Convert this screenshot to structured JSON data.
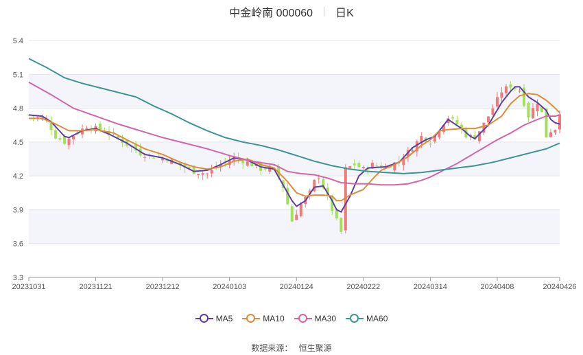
{
  "header": {
    "stock_title": "中金岭南 000060",
    "period": "日K"
  },
  "source": {
    "label": "数据来源：",
    "provider": "恒生聚源"
  },
  "chart_data": {
    "type": "candlestick",
    "ylim": [
      3.3,
      5.4
    ],
    "yticks": [
      3.3,
      3.6,
      3.9,
      4.2,
      4.5,
      4.8,
      5.1,
      5.4
    ],
    "x_ticks": [
      "20231031",
      "20231121",
      "20231212",
      "20240103",
      "20240124",
      "20240222",
      "20240314",
      "20240408",
      "20240426"
    ],
    "x_tick_index": [
      0,
      15,
      30,
      45,
      60,
      75,
      90,
      105,
      119
    ],
    "n_bars": 120,
    "colors": {
      "up": "#f07a7a",
      "down": "#a3e05a",
      "MA5": "#5e3ea0",
      "MA10": "#dc8c3a",
      "MA30": "#d464a8",
      "MA60": "#3e9494",
      "band": "#f4f5fa"
    },
    "close_anchors": [
      [
        0,
        4.74
      ],
      [
        4,
        4.7
      ],
      [
        6,
        4.55
      ],
      [
        8,
        4.5
      ],
      [
        10,
        4.56
      ],
      [
        13,
        4.64
      ],
      [
        16,
        4.61
      ],
      [
        19,
        4.56
      ],
      [
        22,
        4.48
      ],
      [
        25,
        4.4
      ],
      [
        28,
        4.37
      ],
      [
        31,
        4.35
      ],
      [
        34,
        4.29
      ],
      [
        37,
        4.24
      ],
      [
        40,
        4.22
      ],
      [
        43,
        4.3
      ],
      [
        46,
        4.36
      ],
      [
        49,
        4.32
      ],
      [
        52,
        4.26
      ],
      [
        55,
        4.28
      ],
      [
        57,
        4.1
      ],
      [
        59,
        3.8
      ],
      [
        61,
        3.95
      ],
      [
        63,
        4.05
      ],
      [
        64,
        4.15
      ],
      [
        65,
        4.2
      ],
      [
        67,
        4.0
      ],
      [
        69,
        3.8
      ],
      [
        70,
        3.7
      ],
      [
        71,
        4.26
      ],
      [
        73,
        4.3
      ],
      [
        75,
        4.26
      ],
      [
        77,
        4.3
      ],
      [
        80,
        4.28
      ],
      [
        83,
        4.33
      ],
      [
        86,
        4.45
      ],
      [
        88,
        4.55
      ],
      [
        90,
        4.5
      ],
      [
        92,
        4.62
      ],
      [
        94,
        4.72
      ],
      [
        96,
        4.66
      ],
      [
        98,
        4.56
      ],
      [
        100,
        4.54
      ],
      [
        102,
        4.66
      ],
      [
        104,
        4.8
      ],
      [
        106,
        4.95
      ],
      [
        108,
        5.0
      ],
      [
        110,
        4.96
      ],
      [
        112,
        4.73
      ],
      [
        114,
        4.86
      ],
      [
        115,
        4.76
      ],
      [
        116,
        4.55
      ],
      [
        117,
        4.6
      ],
      [
        118,
        4.62
      ],
      [
        119,
        4.77
      ]
    ],
    "series": [
      {
        "name": "MA5",
        "values": [
          [
            0,
            4.74
          ],
          [
            3,
            4.73
          ],
          [
            5,
            4.68
          ],
          [
            8,
            4.55
          ],
          [
            9,
            4.54
          ],
          [
            12,
            4.6
          ],
          [
            15,
            4.62
          ],
          [
            18,
            4.57
          ],
          [
            22,
            4.49
          ],
          [
            26,
            4.39
          ],
          [
            30,
            4.36
          ],
          [
            34,
            4.3
          ],
          [
            37,
            4.24
          ],
          [
            40,
            4.25
          ],
          [
            43,
            4.3
          ],
          [
            46,
            4.36
          ],
          [
            49,
            4.34
          ],
          [
            52,
            4.28
          ],
          [
            55,
            4.26
          ],
          [
            57,
            4.12
          ],
          [
            59,
            3.98
          ],
          [
            60,
            3.93
          ],
          [
            62,
            3.98
          ],
          [
            64,
            4.1
          ],
          [
            66,
            4.11
          ],
          [
            68,
            3.98
          ],
          [
            69,
            3.9
          ],
          [
            70,
            3.88
          ],
          [
            72,
            4.02
          ],
          [
            74,
            4.2
          ],
          [
            76,
            4.27
          ],
          [
            80,
            4.28
          ],
          [
            83,
            4.32
          ],
          [
            86,
            4.45
          ],
          [
            89,
            4.52
          ],
          [
            91,
            4.55
          ],
          [
            94,
            4.7
          ],
          [
            97,
            4.62
          ],
          [
            99,
            4.55
          ],
          [
            100,
            4.53
          ],
          [
            103,
            4.65
          ],
          [
            106,
            4.85
          ],
          [
            108,
            4.95
          ],
          [
            109,
            4.99
          ],
          [
            110,
            4.99
          ],
          [
            112,
            4.9
          ],
          [
            114,
            4.85
          ],
          [
            116,
            4.78
          ],
          [
            117,
            4.7
          ],
          [
            118,
            4.67
          ],
          [
            119,
            4.66
          ]
        ]
      },
      {
        "name": "MA10",
        "values": [
          [
            0,
            4.71
          ],
          [
            3,
            4.71
          ],
          [
            6,
            4.66
          ],
          [
            9,
            4.6
          ],
          [
            12,
            4.6
          ],
          [
            15,
            4.61
          ],
          [
            19,
            4.58
          ],
          [
            22,
            4.52
          ],
          [
            26,
            4.44
          ],
          [
            30,
            4.39
          ],
          [
            34,
            4.32
          ],
          [
            37,
            4.28
          ],
          [
            40,
            4.26
          ],
          [
            43,
            4.28
          ],
          [
            46,
            4.33
          ],
          [
            49,
            4.35
          ],
          [
            52,
            4.3
          ],
          [
            55,
            4.27
          ],
          [
            58,
            4.15
          ],
          [
            60,
            4.05
          ],
          [
            62,
            4.02
          ],
          [
            64,
            4.03
          ],
          [
            66,
            4.03
          ],
          [
            68,
            4.02
          ],
          [
            69,
            3.98
          ],
          [
            70,
            3.98
          ],
          [
            72,
            4.03
          ],
          [
            75,
            4.08
          ],
          [
            77,
            4.17
          ],
          [
            79,
            4.25
          ],
          [
            82,
            4.3
          ],
          [
            85,
            4.37
          ],
          [
            88,
            4.47
          ],
          [
            90,
            4.52
          ],
          [
            92,
            4.6
          ],
          [
            94,
            4.61
          ],
          [
            97,
            4.62
          ],
          [
            100,
            4.62
          ],
          [
            103,
            4.65
          ],
          [
            106,
            4.73
          ],
          [
            108,
            4.84
          ],
          [
            110,
            4.91
          ],
          [
            112,
            4.93
          ],
          [
            114,
            4.92
          ],
          [
            116,
            4.87
          ],
          [
            118,
            4.8
          ],
          [
            119,
            4.76
          ]
        ]
      },
      {
        "name": "MA30",
        "values": [
          [
            0,
            5.03
          ],
          [
            5,
            4.92
          ],
          [
            10,
            4.8
          ],
          [
            15,
            4.73
          ],
          [
            20,
            4.66
          ],
          [
            25,
            4.6
          ],
          [
            30,
            4.54
          ],
          [
            35,
            4.49
          ],
          [
            40,
            4.44
          ],
          [
            45,
            4.38
          ],
          [
            50,
            4.33
          ],
          [
            55,
            4.3
          ],
          [
            58,
            4.24
          ],
          [
            61,
            4.22
          ],
          [
            64,
            4.21
          ],
          [
            67,
            4.18
          ],
          [
            70,
            4.14
          ],
          [
            73,
            4.13
          ],
          [
            76,
            4.13
          ],
          [
            79,
            4.12
          ],
          [
            82,
            4.12
          ],
          [
            85,
            4.13
          ],
          [
            88,
            4.16
          ],
          [
            90,
            4.19
          ],
          [
            93,
            4.25
          ],
          [
            96,
            4.31
          ],
          [
            99,
            4.38
          ],
          [
            102,
            4.45
          ],
          [
            105,
            4.52
          ],
          [
            108,
            4.58
          ],
          [
            111,
            4.65
          ],
          [
            114,
            4.7
          ],
          [
            116,
            4.73
          ],
          [
            118,
            4.73
          ],
          [
            119,
            4.74
          ]
        ]
      },
      {
        "name": "MA60",
        "values": [
          [
            0,
            5.24
          ],
          [
            4,
            5.16
          ],
          [
            8,
            5.07
          ],
          [
            12,
            5.02
          ],
          [
            16,
            4.98
          ],
          [
            20,
            4.94
          ],
          [
            24,
            4.9
          ],
          [
            28,
            4.82
          ],
          [
            32,
            4.75
          ],
          [
            36,
            4.67
          ],
          [
            40,
            4.6
          ],
          [
            44,
            4.54
          ],
          [
            48,
            4.5
          ],
          [
            52,
            4.47
          ],
          [
            56,
            4.43
          ],
          [
            60,
            4.38
          ],
          [
            64,
            4.33
          ],
          [
            68,
            4.29
          ],
          [
            72,
            4.26
          ],
          [
            76,
            4.24
          ],
          [
            80,
            4.23
          ],
          [
            84,
            4.22
          ],
          [
            88,
            4.23
          ],
          [
            92,
            4.25
          ],
          [
            96,
            4.27
          ],
          [
            100,
            4.29
          ],
          [
            104,
            4.32
          ],
          [
            108,
            4.36
          ],
          [
            112,
            4.4
          ],
          [
            116,
            4.44
          ],
          [
            119,
            4.49
          ]
        ]
      }
    ]
  }
}
